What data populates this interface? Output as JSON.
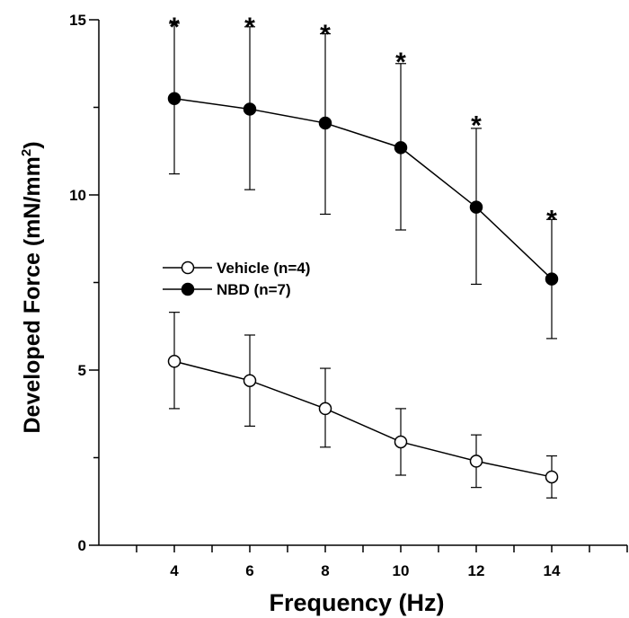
{
  "chart_data": {
    "type": "line",
    "xlabel": "Frequency (Hz)",
    "ylabel": {
      "main": "Developed Force (mN/mm",
      "superscript": "2",
      "close": ")"
    },
    "xlim": [
      2,
      16
    ],
    "ylim": [
      0,
      15
    ],
    "x_ticks": [
      4,
      6,
      8,
      10,
      12,
      14
    ],
    "y_ticks": [
      0,
      5,
      10,
      15
    ],
    "x": [
      4,
      6,
      8,
      10,
      12,
      14
    ],
    "series": [
      {
        "name": "Vehicle (n=4)",
        "marker": "open-circle",
        "values": [
          5.25,
          4.7,
          3.9,
          2.95,
          2.4,
          1.95
        ],
        "error_upper": [
          6.65,
          6.0,
          5.05,
          3.9,
          3.15,
          2.55
        ],
        "error_lower": [
          3.9,
          3.4,
          2.8,
          2.0,
          1.65,
          1.35
        ]
      },
      {
        "name": "NBD (n=7)",
        "marker": "filled-circle",
        "values": [
          12.75,
          12.45,
          12.05,
          11.35,
          9.65,
          7.6
        ],
        "error_upper": [
          14.9,
          14.8,
          14.6,
          13.75,
          11.9,
          9.3
        ],
        "error_lower": [
          10.6,
          10.15,
          9.45,
          9.0,
          7.45,
          5.9
        ]
      }
    ],
    "annotations": [
      {
        "text": "*",
        "x": 4,
        "y": 15.1
      },
      {
        "text": "*",
        "x": 6,
        "y": 15.1
      },
      {
        "text": "*",
        "x": 8,
        "y": 14.9
      },
      {
        "text": "*",
        "x": 10,
        "y": 14.1
      },
      {
        "text": "*",
        "x": 12,
        "y": 12.3
      },
      {
        "text": "*",
        "x": 14,
        "y": 9.6
      }
    ],
    "legend_position": "center-left",
    "grid": false
  }
}
